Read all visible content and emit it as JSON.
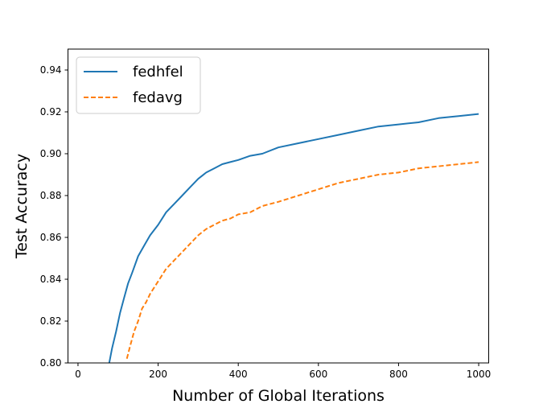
{
  "chart_data": {
    "type": "line",
    "title": "",
    "xlabel": "Number of Global Iterations",
    "ylabel": "Test Accuracy",
    "xlim": [
      -25,
      1025
    ],
    "ylim": [
      0.8,
      0.95
    ],
    "xticks": [
      0,
      200,
      400,
      600,
      800,
      1000
    ],
    "yticks": [
      0.8,
      0.82,
      0.84,
      0.86,
      0.88,
      0.9,
      0.92,
      0.94
    ],
    "ytick_labels": [
      "0.80",
      "0.82",
      "0.84",
      "0.86",
      "0.88",
      "0.90",
      "0.92",
      "0.94"
    ],
    "grid": false,
    "legend_position": "top-left",
    "series": [
      {
        "name": "fedhfel",
        "color": "#1f77b4",
        "style": "solid",
        "x": [
          78,
          85,
          95,
          105,
          115,
          125,
          135,
          150,
          165,
          180,
          200,
          220,
          240,
          260,
          280,
          300,
          320,
          340,
          360,
          380,
          400,
          430,
          460,
          500,
          550,
          600,
          650,
          700,
          750,
          800,
          850,
          900,
          950,
          1000
        ],
        "y": [
          0.8,
          0.807,
          0.815,
          0.824,
          0.831,
          0.838,
          0.843,
          0.851,
          0.856,
          0.861,
          0.866,
          0.872,
          0.876,
          0.88,
          0.884,
          0.888,
          0.891,
          0.893,
          0.895,
          0.896,
          0.897,
          0.899,
          0.9,
          0.903,
          0.905,
          0.907,
          0.909,
          0.911,
          0.913,
          0.914,
          0.915,
          0.917,
          0.918,
          0.919
        ]
      },
      {
        "name": "fedavg",
        "color": "#ff7f0e",
        "style": "dashed",
        "x": [
          122,
          130,
          140,
          150,
          160,
          170,
          180,
          200,
          220,
          240,
          260,
          280,
          300,
          320,
          340,
          360,
          380,
          400,
          430,
          460,
          500,
          550,
          600,
          650,
          700,
          750,
          800,
          850,
          900,
          950,
          1000
        ],
        "y": [
          0.802,
          0.808,
          0.815,
          0.82,
          0.826,
          0.829,
          0.833,
          0.839,
          0.845,
          0.849,
          0.853,
          0.857,
          0.861,
          0.864,
          0.866,
          0.868,
          0.869,
          0.871,
          0.872,
          0.875,
          0.877,
          0.88,
          0.883,
          0.886,
          0.888,
          0.89,
          0.891,
          0.893,
          0.894,
          0.895,
          0.896
        ]
      }
    ]
  }
}
